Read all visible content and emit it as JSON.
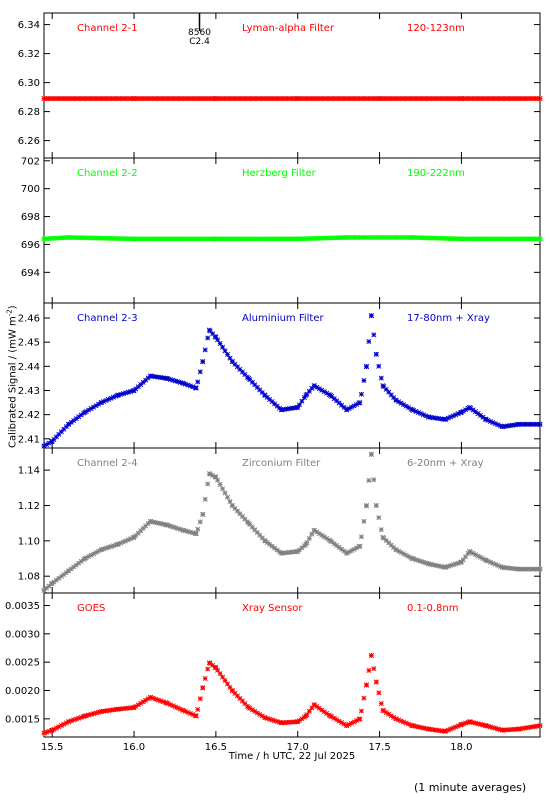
{
  "chart_data": {
    "type": "scatter",
    "xlabel": "Time / h UTC, 22 Jul 2025",
    "ylabel": "Calibrated Signal / (mW m",
    "ylabel_sup": "-2",
    "ylabel_end": ")",
    "footer": "(1 minute averages)",
    "xlim": [
      15.45,
      18.48
    ],
    "xticks": [
      15.5,
      16.0,
      16.5,
      17.0,
      17.5,
      18.0
    ],
    "xtick_labels": [
      "15.5",
      "16.0",
      "16.5",
      "17.0",
      "17.5",
      "18.0"
    ],
    "panels": [
      {
        "channel": "Channel 2-1",
        "filter": "Lyman-alpha Filter",
        "band": "120-123nm",
        "color": "#ff0000",
        "ylim": [
          6.248,
          6.348
        ],
        "yticks": [
          6.26,
          6.28,
          6.3,
          6.32,
          6.34
        ],
        "ytick_labels": [
          "6.26",
          "6.28",
          "6.30",
          "6.32",
          "6.34"
        ],
        "annotation": [
          "8560",
          "C2.4"
        ],
        "annotation_x": 16.4,
        "points": [
          [
            15.45,
            6.289
          ],
          [
            16.0,
            6.289
          ],
          [
            16.5,
            6.289
          ],
          [
            17.0,
            6.289
          ],
          [
            17.5,
            6.289
          ],
          [
            18.0,
            6.289
          ],
          [
            18.48,
            6.289
          ]
        ]
      },
      {
        "channel": "Channel 2-2",
        "filter": "Herzberg Filter",
        "band": "190-222nm",
        "color": "#00ff00",
        "ylim": [
          691.8,
          702.2
        ],
        "yticks": [
          694,
          696,
          698,
          700,
          702
        ],
        "ytick_labels": [
          "694",
          "696",
          "698",
          "700",
          "702"
        ],
        "points": [
          [
            15.45,
            696.4
          ],
          [
            15.6,
            696.5
          ],
          [
            16.0,
            696.4
          ],
          [
            16.5,
            696.4
          ],
          [
            17.0,
            696.4
          ],
          [
            17.3,
            696.5
          ],
          [
            17.7,
            696.5
          ],
          [
            18.0,
            696.4
          ],
          [
            18.48,
            696.4
          ]
        ]
      },
      {
        "channel": "Channel 2-3",
        "filter": "Aluminium Filter",
        "band": "17-80nm + Xray",
        "color": "#0000cc",
        "ylim": [
          2.4062,
          2.4662
        ],
        "yticks": [
          2.41,
          2.42,
          2.43,
          2.44,
          2.45,
          2.46
        ],
        "ytick_labels": [
          "2.41",
          "2.42",
          "2.43",
          "2.44",
          "2.45",
          "2.46"
        ],
        "points": [
          [
            15.45,
            2.407
          ],
          [
            15.5,
            2.409
          ],
          [
            15.6,
            2.416
          ],
          [
            15.7,
            2.421
          ],
          [
            15.8,
            2.425
          ],
          [
            15.9,
            2.428
          ],
          [
            16.0,
            2.43
          ],
          [
            16.1,
            2.436
          ],
          [
            16.2,
            2.435
          ],
          [
            16.3,
            2.433
          ],
          [
            16.38,
            2.431
          ],
          [
            16.42,
            2.442
          ],
          [
            16.46,
            2.455
          ],
          [
            16.5,
            2.452
          ],
          [
            16.6,
            2.442
          ],
          [
            16.7,
            2.435
          ],
          [
            16.8,
            2.428
          ],
          [
            16.9,
            2.422
          ],
          [
            17.0,
            2.423
          ],
          [
            17.05,
            2.428
          ],
          [
            17.1,
            2.432
          ],
          [
            17.2,
            2.428
          ],
          [
            17.3,
            2.422
          ],
          [
            17.38,
            2.425
          ],
          [
            17.42,
            2.44
          ],
          [
            17.45,
            2.461
          ],
          [
            17.48,
            2.445
          ],
          [
            17.52,
            2.432
          ],
          [
            17.6,
            2.426
          ],
          [
            17.7,
            2.422
          ],
          [
            17.8,
            2.419
          ],
          [
            17.9,
            2.418
          ],
          [
            18.0,
            2.421
          ],
          [
            18.05,
            2.423
          ],
          [
            18.15,
            2.418
          ],
          [
            18.25,
            2.415
          ],
          [
            18.35,
            2.416
          ],
          [
            18.48,
            2.416
          ]
        ]
      },
      {
        "channel": "Channel 2-4",
        "filter": "Zirconium Filter",
        "band": "6-20nm + Xray",
        "color": "#808080",
        "ylim": [
          1.0705,
          1.1525
        ],
        "yticks": [
          1.08,
          1.1,
          1.12,
          1.14
        ],
        "ytick_labels": [
          "1.08",
          "1.10",
          "1.12",
          "1.14"
        ],
        "points": [
          [
            15.45,
            1.072
          ],
          [
            15.5,
            1.076
          ],
          [
            15.6,
            1.083
          ],
          [
            15.7,
            1.09
          ],
          [
            15.8,
            1.095
          ],
          [
            15.9,
            1.098
          ],
          [
            16.0,
            1.102
          ],
          [
            16.1,
            1.111
          ],
          [
            16.2,
            1.109
          ],
          [
            16.3,
            1.106
          ],
          [
            16.38,
            1.104
          ],
          [
            16.42,
            1.115
          ],
          [
            16.46,
            1.138
          ],
          [
            16.5,
            1.136
          ],
          [
            16.6,
            1.12
          ],
          [
            16.7,
            1.11
          ],
          [
            16.8,
            1.1
          ],
          [
            16.9,
            1.093
          ],
          [
            17.0,
            1.094
          ],
          [
            17.05,
            1.098
          ],
          [
            17.1,
            1.106
          ],
          [
            17.2,
            1.1
          ],
          [
            17.3,
            1.093
          ],
          [
            17.38,
            1.097
          ],
          [
            17.42,
            1.12
          ],
          [
            17.45,
            1.149
          ],
          [
            17.48,
            1.12
          ],
          [
            17.52,
            1.102
          ],
          [
            17.6,
            1.095
          ],
          [
            17.7,
            1.09
          ],
          [
            17.8,
            1.087
          ],
          [
            17.9,
            1.085
          ],
          [
            18.0,
            1.088
          ],
          [
            18.05,
            1.094
          ],
          [
            18.15,
            1.089
          ],
          [
            18.25,
            1.085
          ],
          [
            18.35,
            1.084
          ],
          [
            18.48,
            1.084
          ]
        ]
      },
      {
        "channel": "GOES",
        "filter": "Xray Sensor",
        "band": "0.1-0.8nm",
        "color": "#ff0000",
        "ylim": [
          0.00118,
          0.00372
        ],
        "yticks": [
          0.0015,
          0.002,
          0.0025,
          0.003,
          0.0035
        ],
        "ytick_labels": [
          "0.0015",
          "0.0020",
          "0.0025",
          "0.0030",
          "0.0035"
        ],
        "points": [
          [
            15.45,
            0.00125
          ],
          [
            15.5,
            0.0013
          ],
          [
            15.6,
            0.00145
          ],
          [
            15.7,
            0.00155
          ],
          [
            15.8,
            0.00163
          ],
          [
            15.9,
            0.00167
          ],
          [
            16.0,
            0.0017
          ],
          [
            16.1,
            0.00188
          ],
          [
            16.2,
            0.00178
          ],
          [
            16.3,
            0.00165
          ],
          [
            16.38,
            0.00155
          ],
          [
            16.42,
            0.00205
          ],
          [
            16.46,
            0.00249
          ],
          [
            16.5,
            0.0024
          ],
          [
            16.6,
            0.002
          ],
          [
            16.7,
            0.0017
          ],
          [
            16.8,
            0.00152
          ],
          [
            16.9,
            0.00143
          ],
          [
            17.0,
            0.00145
          ],
          [
            17.05,
            0.00155
          ],
          [
            17.1,
            0.00175
          ],
          [
            17.2,
            0.00155
          ],
          [
            17.3,
            0.00138
          ],
          [
            17.38,
            0.0015
          ],
          [
            17.42,
            0.0021
          ],
          [
            17.45,
            0.00262
          ],
          [
            17.48,
            0.00215
          ],
          [
            17.52,
            0.00165
          ],
          [
            17.6,
            0.0015
          ],
          [
            17.7,
            0.00138
          ],
          [
            17.8,
            0.00132
          ],
          [
            17.9,
            0.00128
          ],
          [
            18.0,
            0.0014
          ],
          [
            18.05,
            0.00145
          ],
          [
            18.15,
            0.00138
          ],
          [
            18.25,
            0.0013
          ],
          [
            18.35,
            0.00132
          ],
          [
            18.48,
            0.00138
          ]
        ]
      }
    ]
  }
}
